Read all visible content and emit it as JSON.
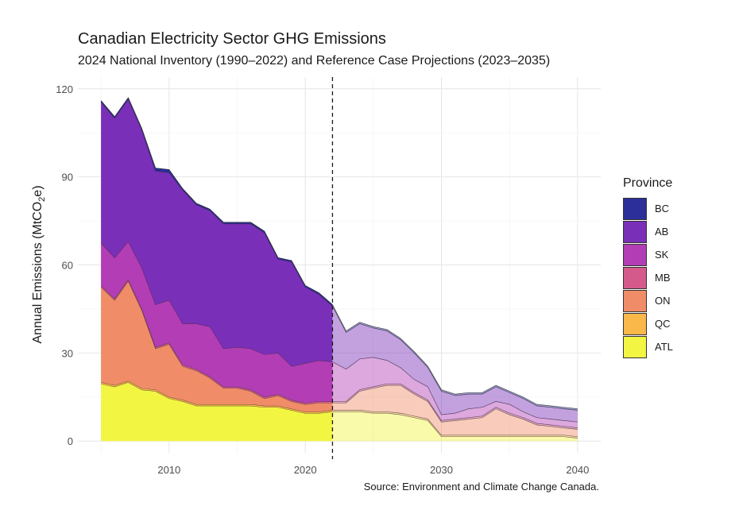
{
  "title": "Canadian Electricity Sector GHG Emissions",
  "subtitle": "2024 National Inventory (1990–2022) and Reference Case Projections (2023–2035)",
  "caption": "Source: Environment and Climate Change Canada.",
  "ylabel_main": "Annual Emissions (MtCO",
  "ylabel_sub": "2",
  "ylabel_end": "e)",
  "legend_title": "Province",
  "colors": {
    "BC": "#2c2e9a",
    "AB": "#7a2fb8",
    "SK": "#b23db5",
    "MB": "#d45a8c",
    "ON": "#f08c68",
    "QC": "#fbb84a",
    "ATL": "#f2f542"
  },
  "chart_data": {
    "type": "area",
    "stacked": true,
    "xlim": [
      2003.3,
      2041.7
    ],
    "ylim": [
      -4,
      124
    ],
    "x_ticks": [
      2010,
      2020,
      2030,
      2040
    ],
    "y_ticks": [
      0,
      30,
      60,
      90,
      120
    ],
    "grid": true,
    "legend_position": "right",
    "divider_x": 2022,
    "divider_style": "dashed",
    "historical_end": 2022,
    "projection_end": 2040,
    "x": [
      2005,
      2006,
      2007,
      2008,
      2009,
      2010,
      2011,
      2012,
      2013,
      2014,
      2015,
      2016,
      2017,
      2018,
      2019,
      2020,
      2021,
      2022,
      2023,
      2024,
      2025,
      2026,
      2027,
      2028,
      2029,
      2030,
      2031,
      2032,
      2033,
      2034,
      2035,
      2036,
      2037,
      2038,
      2039,
      2040
    ],
    "series": [
      {
        "name": "ATL",
        "values": [
          19.5,
          18.5,
          20,
          17.5,
          17,
          14.5,
          13.5,
          12,
          12,
          12,
          12,
          12,
          11.5,
          11.5,
          10.5,
          9.5,
          9.5,
          10,
          10,
          10,
          9.5,
          9.5,
          9,
          8,
          7,
          1.5,
          1.5,
          1.5,
          1.5,
          1.5,
          1.5,
          1.5,
          1.5,
          1.5,
          1.5,
          1
        ]
      },
      {
        "name": "QC",
        "values": [
          0.5,
          0.5,
          0.5,
          0.5,
          0.5,
          0.5,
          0.5,
          0.5,
          0.5,
          0.5,
          0.5,
          0.5,
          0.5,
          0.5,
          0.5,
          0.5,
          0.5,
          0.5,
          0.5,
          0.5,
          0.5,
          0.5,
          0.5,
          0.5,
          0.5,
          0.5,
          0.5,
          0.5,
          0.5,
          0.5,
          0.5,
          0.5,
          0.5,
          0.5,
          0.5,
          0.5
        ]
      },
      {
        "name": "ON",
        "values": [
          32.5,
          29,
          34,
          26.5,
          14,
          18,
          11.5,
          11.5,
          9,
          5.5,
          5.5,
          4.5,
          2.5,
          3.5,
          2.5,
          2.5,
          3,
          2.5,
          2.5,
          6.5,
          8,
          9,
          9.5,
          7.5,
          6,
          4.5,
          5,
          5.5,
          6,
          9,
          7,
          5.5,
          3.5,
          3,
          2.5,
          2.5
        ]
      },
      {
        "name": "MB",
        "values": [
          0.5,
          0.5,
          0.5,
          0.5,
          0.5,
          0.5,
          0.5,
          0.5,
          0.5,
          0.5,
          0.5,
          0.5,
          0.5,
          0.5,
          0.5,
          0.5,
          0.5,
          0.5,
          0.5,
          0.5,
          0.5,
          0.5,
          0.5,
          0.5,
          0.5,
          0.5,
          0.5,
          0.5,
          0.5,
          0.5,
          0.5,
          0.5,
          0.5,
          0.5,
          0.5,
          0.5
        ]
      },
      {
        "name": "SK",
        "values": [
          14.5,
          14,
          13,
          14,
          14.5,
          14.5,
          14,
          15.5,
          17,
          13,
          13.5,
          14,
          14.5,
          14,
          11.5,
          13.5,
          14,
          13.5,
          11,
          10.5,
          10,
          8,
          5.5,
          4.5,
          4.5,
          2,
          2,
          3,
          3,
          2,
          3,
          2,
          2,
          2,
          2,
          2
        ]
      },
      {
        "name": "AB",
        "values": [
          48,
          47.5,
          48.5,
          47,
          45.5,
          43.5,
          45.5,
          40.5,
          39.5,
          42.5,
          42,
          42.5,
          41.5,
          32,
          35.5,
          26,
          22.5,
          19,
          12.5,
          12,
          10,
          10,
          9.5,
          9,
          6.5,
          8,
          6,
          5,
          4.5,
          5,
          4,
          4.5,
          4,
          4,
          4,
          4
        ]
      },
      {
        "name": "BC",
        "values": [
          0.5,
          0.5,
          0.5,
          0.5,
          1,
          1,
          0.5,
          0.5,
          0.5,
          0.5,
          0.5,
          0.5,
          0.5,
          0.5,
          0.5,
          0.5,
          0.5,
          0.5,
          0.5,
          0.5,
          0.5,
          0.5,
          0.5,
          0.5,
          0.5,
          0.5,
          0.5,
          0.5,
          0.5,
          0.5,
          0.5,
          0.5,
          0.5,
          0.5,
          0.5,
          0.5
        ]
      }
    ]
  }
}
